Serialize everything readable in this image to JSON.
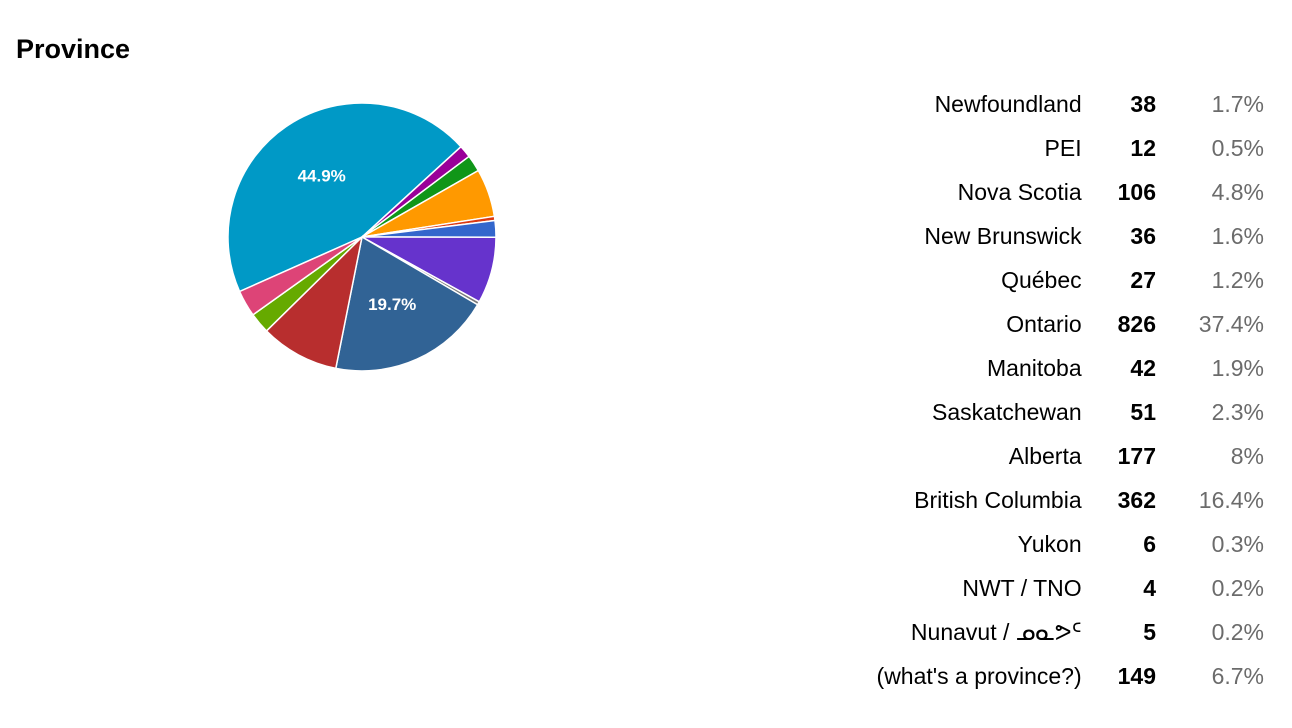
{
  "title": "Province",
  "chart_data": {
    "type": "pie",
    "title": "Province",
    "slices": [
      {
        "name": "Newfoundland",
        "count": 38,
        "percent_label": "1.7%",
        "color": "#e8467c"
      },
      {
        "name": "PEI",
        "count": 12,
        "percent_label": "0.5%",
        "color": "#8ab833"
      },
      {
        "name": "Nova Scotia",
        "count": 106,
        "percent_label": "4.8%",
        "color": "#b82e2e"
      },
      {
        "name": "New Brunswick",
        "count": 36,
        "percent_label": "1.6%",
        "color": "#316395"
      },
      {
        "name": "Québec",
        "count": 27,
        "percent_label": "1.2%",
        "color": "#994499"
      },
      {
        "name": "Ontario",
        "count": 826,
        "percent_label": "37.4%",
        "color": "#22aa99"
      },
      {
        "name": "Manitoba",
        "count": 42,
        "percent_label": "1.9%",
        "color": "#aaaa11"
      },
      {
        "name": "Saskatchewan",
        "count": 51,
        "percent_label": "2.3%",
        "color": "#6633cc"
      },
      {
        "name": "Alberta",
        "count": 177,
        "percent_label": "8%",
        "color": "#e67300"
      },
      {
        "name": "British Columbia",
        "count": 362,
        "percent_label": "16.4%",
        "color": "#8b0707"
      },
      {
        "name": "Yukon",
        "count": 6,
        "percent_label": "0.3%",
        "color": "#651067"
      },
      {
        "name": "NWT / TNO",
        "count": 4,
        "percent_label": "0.2%",
        "color": "#329262"
      },
      {
        "name": "Nunavut / ᓄᓇᕗᑦ",
        "count": 5,
        "percent_label": "0.2%",
        "color": "#5574a6"
      },
      {
        "name": "(what's a province?)",
        "count": 149,
        "percent_label": "6.7%",
        "color": "#3b3eac"
      }
    ],
    "rendered_pie": {
      "note_values_are_percent_of_pie": true,
      "wedges": [
        {
          "value": 44.9,
          "label": "44.9%",
          "color": "#0099c6"
        },
        {
          "value": 1.5,
          "label": "",
          "color": "#990099"
        },
        {
          "value": 2.0,
          "label": "",
          "color": "#109618"
        },
        {
          "value": 5.8,
          "label": "",
          "color": "#ff9900"
        },
        {
          "value": 0.5,
          "label": "",
          "color": "#dc3912"
        },
        {
          "value": 2.0,
          "label": "",
          "color": "#3366cc"
        },
        {
          "value": 8.0,
          "label": "",
          "color": "#6633cc"
        },
        {
          "value": 0.4,
          "label": "",
          "color": "#7a7a7a"
        },
        {
          "value": 19.7,
          "label": "19.7%",
          "color": "#316395"
        },
        {
          "value": 9.5,
          "label": "",
          "color": "#b82e2e"
        },
        {
          "value": 2.5,
          "label": "",
          "color": "#66aa00"
        },
        {
          "value": 3.2,
          "label": "",
          "color": "#dd4477"
        }
      ]
    }
  }
}
